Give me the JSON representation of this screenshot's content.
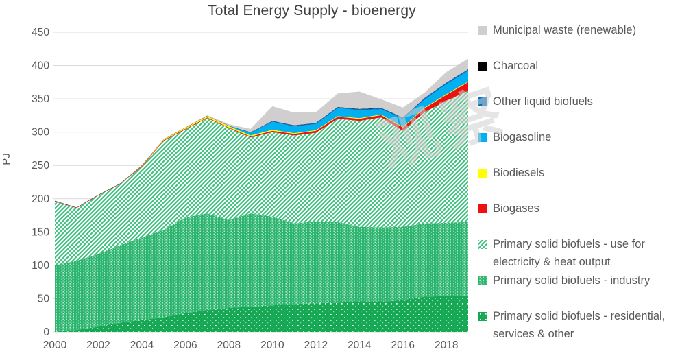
{
  "title": "Total Energy Supply - bioenergy",
  "watermark_text": "观察",
  "axes": {
    "y_label": "PJ",
    "y_ticks": [
      "0",
      "50",
      "100",
      "150",
      "200",
      "250",
      "300",
      "350",
      "400",
      "450"
    ],
    "x_ticks": [
      "2000",
      "2002",
      "2004",
      "2006",
      "2008",
      "2010",
      "2012",
      "2014",
      "2016",
      "2018"
    ]
  },
  "colors": {
    "municipal_waste": "#d0cece",
    "charcoal": "#000000",
    "other_liquid_biofuels": "#0070c0",
    "biogasoline": "#00b0f0",
    "biodiesels": "#ffff00",
    "biogases": "#ee1111",
    "green_diagonal_line": "#3ec07e",
    "green_industry_bg": "#2cb56e",
    "green_residential_bg": "#16a854",
    "gridline": "#d9d9d9",
    "tick_text": "#595959",
    "title_text": "#404040"
  },
  "legend": {
    "items": [
      {
        "label": "Municipal waste (renewable)",
        "fill": "#d0cece",
        "pattern": null
      },
      {
        "label": "Charcoal",
        "fill": "#000000",
        "pattern": null
      },
      {
        "label": "Other liquid biofuels",
        "fill": "#0070c0",
        "pattern": null
      },
      {
        "label": "Biogasoline",
        "fill": "#00b0f0",
        "pattern": null
      },
      {
        "label": "Biodiesels",
        "fill": "#ffff00",
        "pattern": null
      },
      {
        "label": "Biogases",
        "fill": "#ee1111",
        "pattern": null
      },
      {
        "label": "Primary solid biofuels - use for electricity & heat output",
        "fill": null,
        "pattern": "diagonal-green"
      },
      {
        "label": "Primary solid biofuels - industry",
        "fill": null,
        "pattern": "cross-green"
      },
      {
        "label": "Primary solid biofuels - residential, services & other",
        "fill": null,
        "pattern": "dots-green"
      }
    ]
  },
  "chart_data": {
    "type": "area",
    "stacked": true,
    "title": "Total Energy Supply - bioenergy",
    "xlabel": "",
    "ylabel": "PJ",
    "ylim": [
      0,
      450
    ],
    "grid": true,
    "legend_position": "right",
    "x": [
      2000,
      2001,
      2002,
      2003,
      2004,
      2005,
      2006,
      2007,
      2008,
      2009,
      2010,
      2011,
      2012,
      2013,
      2014,
      2015,
      2016,
      2017,
      2018,
      2019
    ],
    "series": [
      {
        "name": "Primary solid biofuels - residential, services & other",
        "pattern": "dots-green",
        "values": [
          2,
          3,
          8,
          14,
          18,
          22,
          28,
          33,
          36,
          38,
          40,
          42,
          43,
          44,
          45,
          45,
          48,
          53,
          54,
          55
        ]
      },
      {
        "name": "Primary solid biofuels - industry",
        "pattern": "cross-green",
        "values": [
          98,
          104,
          109,
          116,
          124,
          131,
          144,
          145,
          132,
          140,
          133,
          121,
          123,
          121,
          113,
          112,
          110,
          110,
          110,
          110
        ]
      },
      {
        "name": "Primary solid biofuels - use for electricity & heat output",
        "pattern": "diagonal-green",
        "values": [
          96,
          79,
          88,
          92,
          106,
          134,
          132,
          143,
          138,
          114,
          127,
          132,
          133,
          155,
          159,
          165,
          144,
          167,
          183,
          197
        ]
      },
      {
        "name": "Biogases",
        "color": "#ee1111",
        "values": [
          0.5,
          0.5,
          0.5,
          0.5,
          1,
          1,
          1,
          1,
          1,
          1.5,
          2,
          2.5,
          3,
          3,
          3,
          3.5,
          5,
          6,
          9,
          13
        ]
      },
      {
        "name": "Biodiesels",
        "color": "#ffff00",
        "values": [
          0,
          0,
          0,
          0,
          0.5,
          1,
          1.5,
          2,
          2,
          1.5,
          1.5,
          1,
          1,
          1,
          1,
          1,
          1,
          1,
          1,
          1
        ]
      },
      {
        "name": "Biogasoline",
        "color": "#00b0f0",
        "values": [
          0,
          0,
          0,
          0,
          0,
          0,
          0,
          0,
          0.5,
          4,
          12,
          10,
          9,
          12,
          12,
          8,
          12,
          12,
          15,
          16
        ]
      },
      {
        "name": "Other liquid biofuels",
        "color": "#0070c0",
        "values": [
          0,
          0,
          0,
          0,
          0,
          0,
          0,
          0,
          0,
          0.5,
          1,
          1.5,
          1.5,
          1.5,
          1.5,
          1.5,
          1.5,
          2,
          2,
          2
        ]
      },
      {
        "name": "Charcoal",
        "color": "#000000",
        "values": [
          0.4,
          0.4,
          0.4,
          0.4,
          0.4,
          0.4,
          0.4,
          0.4,
          0.4,
          0.4,
          0.4,
          0.4,
          0.4,
          0.4,
          0.4,
          0.4,
          0.4,
          0.4,
          0.4,
          0.4
        ]
      },
      {
        "name": "Municipal waste (renewable)",
        "color": "#d0cece",
        "values": [
          0,
          0,
          0,
          0,
          0,
          0,
          0.5,
          1,
          2,
          5,
          22,
          19,
          16,
          20,
          26,
          13,
          15,
          8,
          16,
          16
        ]
      }
    ]
  }
}
